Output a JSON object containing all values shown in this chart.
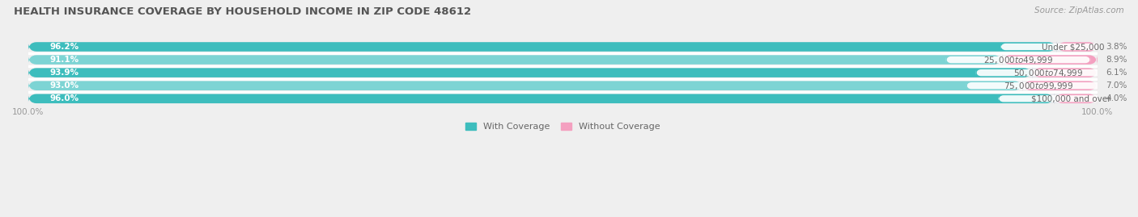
{
  "title": "HEALTH INSURANCE COVERAGE BY HOUSEHOLD INCOME IN ZIP CODE 48612",
  "source": "Source: ZipAtlas.com",
  "categories": [
    "Under $25,000",
    "$25,000 to $49,999",
    "$50,000 to $74,999",
    "$75,000 to $99,999",
    "$100,000 and over"
  ],
  "with_coverage": [
    96.2,
    91.1,
    93.9,
    93.0,
    96.0
  ],
  "without_coverage": [
    3.8,
    8.9,
    6.1,
    7.0,
    4.0
  ],
  "color_with": "#3DBDBD",
  "color_without": "#F4A0C0",
  "color_with_light": "#7DD4D4",
  "bg_color": "#EFEFEF",
  "bar_bg_color": "#E2E2E6",
  "title_color": "#555555",
  "source_color": "#999999",
  "label_color_white": "#FFFFFF",
  "label_color_dark": "#666666",
  "tick_color": "#999999",
  "title_fontsize": 9.5,
  "source_fontsize": 7.5,
  "bar_label_fontsize": 7.5,
  "cat_label_fontsize": 7.5,
  "tick_fontsize": 7.5,
  "legend_fontsize": 8,
  "figsize": [
    14.06,
    2.69
  ],
  "dpi": 100,
  "bar_height": 0.72,
  "row_sep_color": "#FFFFFF"
}
